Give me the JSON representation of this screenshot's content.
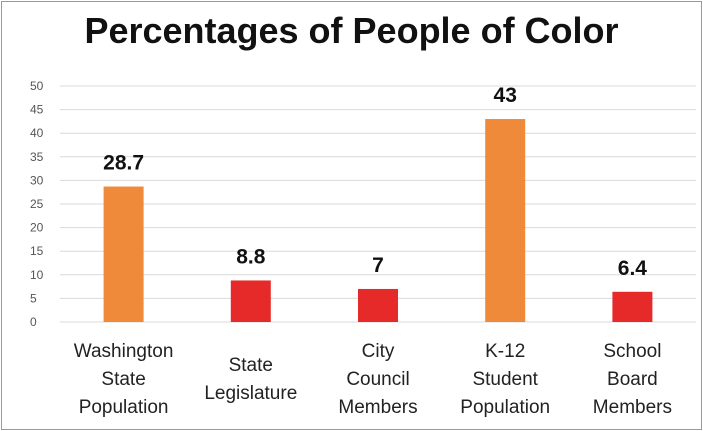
{
  "chart_data": {
    "type": "bar",
    "title": "Percentages of People of Color",
    "categories": [
      [
        "Washington",
        "State",
        "Population"
      ],
      [
        "State",
        "Legislature"
      ],
      [
        "City",
        "Council",
        "Members"
      ],
      [
        "K-12",
        "Student",
        "Population"
      ],
      [
        "School",
        "Board",
        "Members"
      ]
    ],
    "values": [
      28.7,
      8.8,
      7,
      43,
      6.4
    ],
    "value_labels": [
      "28.7",
      "8.8",
      "7",
      "43",
      "6.4"
    ],
    "bar_colors": [
      "#ee8a3a",
      "#e62a2a",
      "#e62a2a",
      "#ee8a3a",
      "#e62a2a"
    ],
    "ylim": [
      0,
      50
    ],
    "yticks": [
      0,
      5,
      10,
      15,
      20,
      25,
      30,
      35,
      40,
      45,
      50
    ],
    "grid": true,
    "xlabel": "",
    "ylabel": ""
  },
  "colors": {
    "orange": "#ee8a3a",
    "red": "#e62a2a",
    "grid": "#d9d9d9"
  }
}
